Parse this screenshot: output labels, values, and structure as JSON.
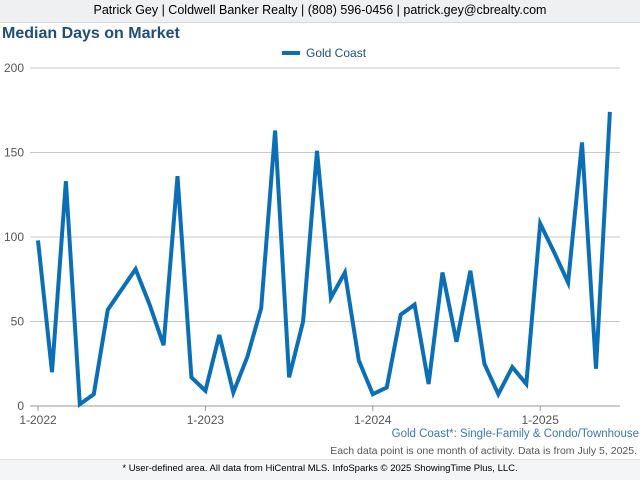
{
  "header": {
    "text": "Patrick Gey | Coldwell Banker Realty | (808) 596-0456 | patrick.gey@cbrealty.com"
  },
  "footnote": {
    "area_label": "Gold Coast*: Single-Family & Condo/Townhouse",
    "note": "Each data point is one month of activity. Data is from July 5, 2025."
  },
  "footer": {
    "text": "* User-defined area. All data from HiCentral MLS. InfoSparks © 2025 ShowingTime Plus, LLC."
  },
  "colors": {
    "series": "#0b6fb8",
    "title": "#1f4e79",
    "grid": "#c8c8c8"
  },
  "chart_data": {
    "type": "line",
    "title": "Median Days on Market",
    "xlabel": "",
    "ylabel": "",
    "ylim": [
      0,
      200
    ],
    "yticks": [
      "0",
      "50",
      "100",
      "150",
      "200"
    ],
    "xticks": [
      {
        "label": "1-2022",
        "x": "2022-01"
      },
      {
        "label": "1-2023",
        "x": "2023-01"
      },
      {
        "label": "1-2024",
        "x": "2024-01"
      },
      {
        "label": "1-2025",
        "x": "2025-01"
      }
    ],
    "grid": true,
    "legend_position": "top-center",
    "x": [
      "2022-01",
      "2022-02",
      "2022-03",
      "2022-04",
      "2022-05",
      "2022-06",
      "2022-07",
      "2022-08",
      "2022-09",
      "2022-10",
      "2022-11",
      "2022-12",
      "2023-01",
      "2023-02",
      "2023-03",
      "2023-04",
      "2023-05",
      "2023-06",
      "2023-07",
      "2023-08",
      "2023-09",
      "2023-10",
      "2023-11",
      "2023-12",
      "2024-01",
      "2024-02",
      "2024-03",
      "2024-04",
      "2024-05",
      "2024-06",
      "2024-07",
      "2024-08",
      "2024-09",
      "2024-10",
      "2024-11",
      "2024-12",
      "2025-01",
      "2025-02",
      "2025-03",
      "2025-04",
      "2025-05",
      "2025-06"
    ],
    "series": [
      {
        "name": "Gold Coast",
        "values": [
          98,
          20,
          133,
          1,
          7,
          57,
          69,
          81,
          60,
          36,
          136,
          17,
          9,
          42,
          8,
          29,
          58,
          163,
          17,
          50,
          151,
          64,
          79,
          27,
          7,
          11,
          54,
          60,
          13,
          79,
          38,
          80,
          25,
          7,
          23,
          13,
          108,
          91,
          73,
          156,
          22,
          174
        ]
      }
    ]
  }
}
